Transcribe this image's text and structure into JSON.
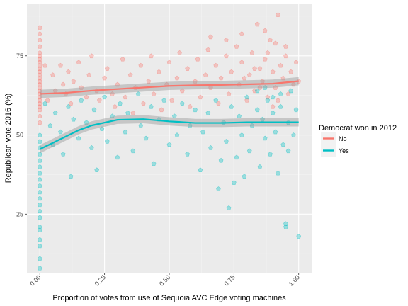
{
  "chart_data": {
    "type": "scatter",
    "xlabel": "Proportion of votes from use of Sequoia AVC Edge voting machines",
    "ylabel": "Republican vote 2016 (%)",
    "x_ticks": [
      "0.00",
      "0.25",
      "0.50",
      "0.75",
      "1.00"
    ],
    "x_tick_values": [
      0,
      0.25,
      0.5,
      0.75,
      1.0
    ],
    "y_ticks": [
      "25",
      "50",
      "75"
    ],
    "y_tick_values": [
      25,
      50,
      75
    ],
    "xlim": [
      -0.05,
      1.05
    ],
    "ylim": [
      6.5,
      91.5
    ],
    "grid": true,
    "legend": {
      "title": "Democrat won in 2012",
      "position": "right"
    },
    "series": [
      {
        "name": "No",
        "color": "#F8766D",
        "points": [
          [
            0.0,
            84
          ],
          [
            0.0,
            82
          ],
          [
            0.0,
            80
          ],
          [
            0.0,
            78
          ],
          [
            0.0,
            76
          ],
          [
            0.0,
            75
          ],
          [
            0.0,
            74
          ],
          [
            0.0,
            73
          ],
          [
            0.0,
            72
          ],
          [
            0.0,
            71
          ],
          [
            0.0,
            70
          ],
          [
            0.0,
            69
          ],
          [
            0.0,
            68
          ],
          [
            0.0,
            67
          ],
          [
            0.0,
            66
          ],
          [
            0.0,
            65
          ],
          [
            0.0,
            64
          ],
          [
            0.0,
            63
          ],
          [
            0.0,
            62
          ],
          [
            0.0,
            61
          ],
          [
            0.0,
            60
          ],
          [
            0.0,
            59
          ],
          [
            0.0,
            58
          ],
          [
            0.0,
            56
          ],
          [
            0.0,
            54
          ],
          [
            0.02,
            72
          ],
          [
            0.03,
            61
          ],
          [
            0.05,
            69
          ],
          [
            0.06,
            64
          ],
          [
            0.08,
            72
          ],
          [
            0.09,
            66
          ],
          [
            0.1,
            63
          ],
          [
            0.11,
            70
          ],
          [
            0.12,
            60
          ],
          [
            0.13,
            67
          ],
          [
            0.15,
            73
          ],
          [
            0.16,
            65
          ],
          [
            0.18,
            62
          ],
          [
            0.19,
            69
          ],
          [
            0.2,
            75
          ],
          [
            0.22,
            64
          ],
          [
            0.23,
            61
          ],
          [
            0.25,
            68
          ],
          [
            0.26,
            71
          ],
          [
            0.28,
            63
          ],
          [
            0.29,
            59
          ],
          [
            0.3,
            66
          ],
          [
            0.32,
            74
          ],
          [
            0.33,
            62
          ],
          [
            0.35,
            69
          ],
          [
            0.36,
            57
          ],
          [
            0.37,
            65
          ],
          [
            0.39,
            72
          ],
          [
            0.4,
            60
          ],
          [
            0.42,
            67
          ],
          [
            0.43,
            75
          ],
          [
            0.44,
            63
          ],
          [
            0.46,
            70
          ],
          [
            0.47,
            58
          ],
          [
            0.49,
            66
          ],
          [
            0.5,
            73
          ],
          [
            0.51,
            61
          ],
          [
            0.53,
            68
          ],
          [
            0.54,
            76
          ],
          [
            0.55,
            64
          ],
          [
            0.57,
            71
          ],
          [
            0.58,
            59
          ],
          [
            0.6,
            67
          ],
          [
            0.61,
            74
          ],
          [
            0.62,
            62
          ],
          [
            0.64,
            69
          ],
          [
            0.65,
            77
          ],
          [
            0.66,
            65
          ],
          [
            0.68,
            72
          ],
          [
            0.69,
            60
          ],
          [
            0.7,
            68
          ],
          [
            0.72,
            75
          ],
          [
            0.73,
            63
          ],
          [
            0.74,
            70
          ],
          [
            0.76,
            78
          ],
          [
            0.77,
            66
          ],
          [
            0.78,
            73
          ],
          [
            0.8,
            61
          ],
          [
            0.81,
            69
          ],
          [
            0.82,
            76
          ],
          [
            0.83,
            64
          ],
          [
            0.84,
            85
          ],
          [
            0.85,
            71
          ],
          [
            0.86,
            67
          ],
          [
            0.87,
            74
          ],
          [
            0.88,
            62
          ],
          [
            0.89,
            80
          ],
          [
            0.9,
            70
          ],
          [
            0.91,
            65
          ],
          [
            0.92,
            88
          ],
          [
            0.93,
            72
          ],
          [
            0.94,
            68
          ],
          [
            0.95,
            75
          ],
          [
            0.96,
            63
          ],
          [
            0.97,
            70
          ],
          [
            0.98,
            66
          ],
          [
            0.99,
            73
          ],
          [
            1.0,
            67
          ],
          [
            0.87,
            83
          ],
          [
            0.78,
            82
          ],
          [
            0.91,
            79
          ],
          [
            0.95,
            78
          ],
          [
            0.72,
            80
          ],
          [
            0.66,
            81
          ],
          [
            0.88,
            76
          ],
          [
            0.83,
            71
          ],
          [
            0.79,
            68
          ],
          [
            0.85,
            65
          ],
          [
            0.92,
            61
          ],
          [
            0.9,
            59
          ]
        ],
        "trend": [
          [
            0.0,
            63
          ],
          [
            0.1,
            63.3
          ],
          [
            0.2,
            64
          ],
          [
            0.3,
            64.5
          ],
          [
            0.4,
            65
          ],
          [
            0.5,
            65.5
          ],
          [
            0.6,
            65.7
          ],
          [
            0.7,
            65.8
          ],
          [
            0.8,
            66
          ],
          [
            0.9,
            66.2
          ],
          [
            1.0,
            67
          ]
        ]
      },
      {
        "name": "Yes",
        "color": "#00BFC4",
        "points": [
          [
            0.0,
            50
          ],
          [
            0.0,
            48
          ],
          [
            0.0,
            46
          ],
          [
            0.0,
            44
          ],
          [
            0.0,
            42
          ],
          [
            0.0,
            40
          ],
          [
            0.0,
            38
          ],
          [
            0.0,
            36
          ],
          [
            0.0,
            34
          ],
          [
            0.0,
            32
          ],
          [
            0.0,
            30
          ],
          [
            0.0,
            28
          ],
          [
            0.0,
            26
          ],
          [
            0.0,
            24
          ],
          [
            0.0,
            21
          ],
          [
            0.0,
            20
          ],
          [
            0.0,
            17
          ],
          [
            0.0,
            15
          ],
          [
            0.0,
            11
          ],
          [
            0.0,
            8
          ],
          [
            0.02,
            60
          ],
          [
            0.04,
            53
          ],
          [
            0.05,
            47
          ],
          [
            0.06,
            57
          ],
          [
            0.08,
            51
          ],
          [
            0.09,
            44
          ],
          [
            0.11,
            59
          ],
          [
            0.12,
            37
          ],
          [
            0.13,
            55
          ],
          [
            0.15,
            49
          ],
          [
            0.16,
            61
          ],
          [
            0.18,
            54
          ],
          [
            0.2,
            46
          ],
          [
            0.21,
            58
          ],
          [
            0.22,
            39
          ],
          [
            0.24,
            52
          ],
          [
            0.25,
            62
          ],
          [
            0.26,
            48
          ],
          [
            0.28,
            56
          ],
          [
            0.3,
            43
          ],
          [
            0.31,
            60
          ],
          [
            0.33,
            51
          ],
          [
            0.34,
            57
          ],
          [
            0.36,
            45
          ],
          [
            0.38,
            63
          ],
          [
            0.39,
            53
          ],
          [
            0.41,
            49
          ],
          [
            0.43,
            59
          ],
          [
            0.44,
            41
          ],
          [
            0.46,
            55
          ],
          [
            0.48,
            61
          ],
          [
            0.5,
            47
          ],
          [
            0.52,
            56
          ],
          [
            0.53,
            50
          ],
          [
            0.55,
            60
          ],
          [
            0.57,
            44
          ],
          [
            0.58,
            53
          ],
          [
            0.6,
            58
          ],
          [
            0.62,
            39
          ],
          [
            0.63,
            51
          ],
          [
            0.65,
            57
          ],
          [
            0.66,
            46
          ],
          [
            0.68,
            61
          ],
          [
            0.69,
            33
          ],
          [
            0.71,
            54
          ],
          [
            0.72,
            48
          ],
          [
            0.73,
            27
          ],
          [
            0.74,
            59
          ],
          [
            0.76,
            43
          ],
          [
            0.77,
            56
          ],
          [
            0.78,
            50
          ],
          [
            0.8,
            62
          ],
          [
            0.81,
            45
          ],
          [
            0.82,
            53
          ],
          [
            0.84,
            58
          ],
          [
            0.85,
            40
          ],
          [
            0.86,
            55
          ],
          [
            0.87,
            49
          ],
          [
            0.88,
            61
          ],
          [
            0.89,
            44
          ],
          [
            0.9,
            57
          ],
          [
            0.91,
            51
          ],
          [
            0.92,
            38
          ],
          [
            0.93,
            59
          ],
          [
            0.94,
            47
          ],
          [
            0.95,
            22
          ],
          [
            0.96,
            54
          ],
          [
            0.97,
            64
          ],
          [
            0.98,
            50
          ],
          [
            1.0,
            18
          ],
          [
            0.95,
            21
          ],
          [
            0.93,
            63
          ],
          [
            0.87,
            65
          ],
          [
            0.9,
            62
          ],
          [
            0.84,
            64
          ],
          [
            0.99,
            58
          ],
          [
            0.96,
            45
          ],
          [
            0.75,
            35
          ],
          [
            0.79,
            37
          ],
          [
            0.7,
            42
          ]
        ],
        "trend": [
          [
            0.0,
            45.5
          ],
          [
            0.05,
            47.5
          ],
          [
            0.1,
            49.5
          ],
          [
            0.15,
            51.5
          ],
          [
            0.2,
            53
          ],
          [
            0.3,
            54.8
          ],
          [
            0.4,
            55
          ],
          [
            0.5,
            54.3
          ],
          [
            0.6,
            53.8
          ],
          [
            0.7,
            53.8
          ],
          [
            0.8,
            54
          ],
          [
            0.9,
            54
          ],
          [
            1.0,
            54
          ]
        ]
      }
    ]
  }
}
